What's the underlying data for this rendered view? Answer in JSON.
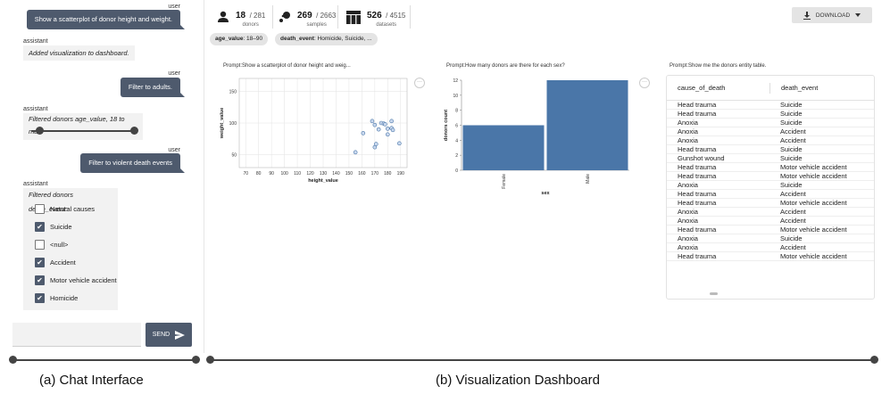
{
  "chat": {
    "messages": [
      {
        "role": "user",
        "text": "Show a scatterplot of donor height and weight."
      },
      {
        "role": "assistant",
        "text": "Added visualization to dashboard."
      },
      {
        "role": "user",
        "text": "Filter to adults."
      },
      {
        "role": "assistant",
        "text": "Filtered donors age_value, 18 to max:"
      },
      {
        "role": "user",
        "text": "Filter to violent death events"
      },
      {
        "role": "assistant",
        "text": "Filtered donors death_event:"
      }
    ],
    "slider": {
      "min_fraction": 0.08,
      "max_fraction": 1.0
    },
    "death_event_options": [
      {
        "label": "Natural causes",
        "checked": false
      },
      {
        "label": "Suicide",
        "checked": true
      },
      {
        "label": "<null>",
        "checked": false
      },
      {
        "label": "Accident",
        "checked": true
      },
      {
        "label": "Motor vehicle accident",
        "checked": true
      },
      {
        "label": "Homicide",
        "checked": true
      }
    ],
    "input_value": "",
    "send_label": "SEND"
  },
  "stats": [
    {
      "value": "18",
      "total": "/ 281",
      "label": "donors",
      "icon": "person-icon"
    },
    {
      "value": "269",
      "total": "/ 2663",
      "label": "samples",
      "icon": "samples-icon"
    },
    {
      "value": "526",
      "total": "/ 4515",
      "label": "datasets",
      "icon": "table-icon"
    }
  ],
  "filters": [
    {
      "key": "age_value",
      "value": ": 18–90"
    },
    {
      "key": "death_event",
      "value": ": Homicide, Suicide, ..."
    }
  ],
  "download_label": "DOWNLOAD",
  "charts": {
    "scatter_prompt": "Prompt:Show a scatterplot of donor height and weig...",
    "bar_prompt": "Prompt:How many donors are there for each sex?",
    "table_prompt": "Prompt:Show me the donors entity table."
  },
  "chart_data": [
    {
      "type": "scatter",
      "xlabel": "height_value",
      "ylabel": "weight_value",
      "xlim": [
        65,
        195
      ],
      "ylim": [
        30,
        170
      ],
      "xticks": [
        70,
        80,
        90,
        100,
        110,
        120,
        130,
        140,
        150,
        160,
        170,
        180,
        190
      ],
      "yticks": [
        50,
        100,
        150
      ],
      "grid": true,
      "points": [
        {
          "x": 155,
          "y": 54
        },
        {
          "x": 161,
          "y": 84
        },
        {
          "x": 168,
          "y": 103
        },
        {
          "x": 170,
          "y": 62
        },
        {
          "x": 171,
          "y": 67
        },
        {
          "x": 170,
          "y": 97
        },
        {
          "x": 173,
          "y": 90
        },
        {
          "x": 175,
          "y": 100
        },
        {
          "x": 177,
          "y": 99
        },
        {
          "x": 178,
          "y": 98
        },
        {
          "x": 180,
          "y": 91
        },
        {
          "x": 180,
          "y": 82
        },
        {
          "x": 183,
          "y": 92
        },
        {
          "x": 183,
          "y": 103
        },
        {
          "x": 184,
          "y": 89
        },
        {
          "x": 189,
          "y": 68
        }
      ]
    },
    {
      "type": "bar",
      "xlabel": "sex",
      "ylabel": "donors count",
      "categories": [
        "Female",
        "Male"
      ],
      "values": [
        6,
        12
      ],
      "ylim": [
        0,
        12
      ],
      "yticks": [
        0,
        2,
        4,
        6,
        8,
        10,
        12
      ],
      "color": "#4a76a8",
      "grid": false
    },
    {
      "type": "table",
      "columns": [
        "cause_of_death",
        "death_event"
      ],
      "rows": [
        [
          "Head trauma",
          "Suicide"
        ],
        [
          "Head trauma",
          "Suicide"
        ],
        [
          "Anoxia",
          "Suicide"
        ],
        [
          "Anoxia",
          "Accident"
        ],
        [
          "Anoxia",
          "Accident"
        ],
        [
          "Head trauma",
          "Suicide"
        ],
        [
          "Gunshot wound",
          "Suicide"
        ],
        [
          "Head trauma",
          "Motor vehicle accident"
        ],
        [
          "Head trauma",
          "Motor vehicle accident"
        ],
        [
          "Anoxia",
          "Suicide"
        ],
        [
          "Head trauma",
          "Accident"
        ],
        [
          "Head trauma",
          "Motor vehicle accident"
        ],
        [
          "Anoxia",
          "Accident"
        ],
        [
          "Anoxia",
          "Accident"
        ],
        [
          "Head trauma",
          "Motor vehicle accident"
        ],
        [
          "Anoxia",
          "Suicide"
        ],
        [
          "Anoxia",
          "Accident"
        ],
        [
          "Head trauma",
          "Motor vehicle accident"
        ]
      ]
    }
  ],
  "captions": {
    "chat": "(a) Chat Interface",
    "dashboard": "(b) Visualization Dashboard"
  }
}
